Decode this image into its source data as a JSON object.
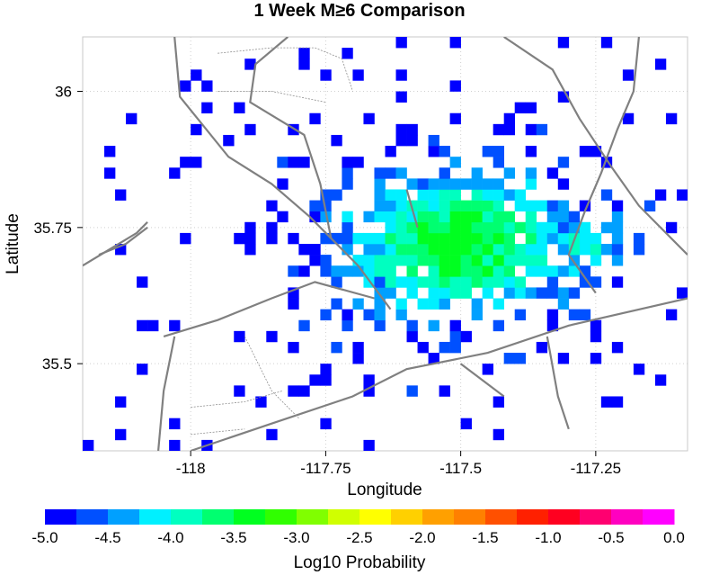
{
  "chart_data": {
    "type": "heatmap",
    "title": "1 Week M≥6 Comparison",
    "xlabel": "Longitude",
    "ylabel": "Latitude",
    "xlim": [
      -118.2,
      -117.08
    ],
    "ylim": [
      35.34,
      36.1
    ],
    "x_ticks": [
      -118,
      -117.75,
      -117.5,
      -117.25
    ],
    "x_tick_labels": [
      "-118",
      "-117.75",
      "-117.5",
      "-117.25"
    ],
    "y_ticks": [
      35.5,
      35.75,
      36
    ],
    "y_tick_labels": [
      "35.5",
      "35.75",
      "36"
    ],
    "grid": "dotted",
    "cell_size_deg": 0.02,
    "colorbar": {
      "label": "Log10 Probability",
      "min": -5.0,
      "max": 0.0,
      "tick_labels": [
        "-5.0",
        "-4.5",
        "-4.0",
        "-3.5",
        "-3.0",
        "-2.5",
        "-2.0",
        "-1.5",
        "-1.0",
        "-0.5",
        "0.0"
      ],
      "colors": [
        "#0000ff",
        "#0050ff",
        "#00a0ff",
        "#00f0ff",
        "#00ffc0",
        "#00ff70",
        "#00ff20",
        "#30ff00",
        "#80ff00",
        "#d0ff00",
        "#ffff00",
        "#ffd000",
        "#ffa000",
        "#ff8000",
        "#ff5000",
        "#ff2000",
        "#ff0020",
        "#ff0070",
        "#ff00c0",
        "#ff00ff"
      ]
    },
    "grid_center": [
      -117.5,
      35.72
    ],
    "description_values": {
      "peak_log10_probability": -3.4,
      "background_log10_probability": -5.0
    }
  }
}
